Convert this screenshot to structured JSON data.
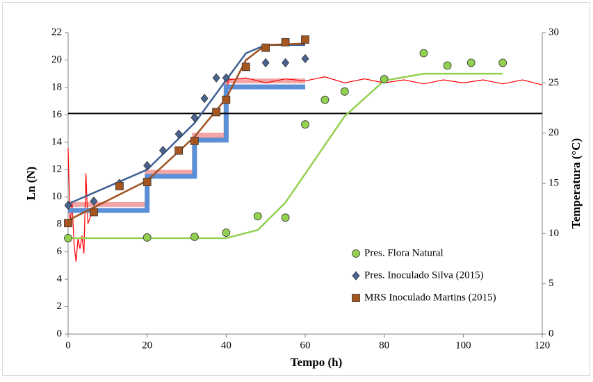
{
  "chart_data": {
    "type": "scatter",
    "xlabel": "Tempo (h)",
    "ylabel": "Ln (N)",
    "y2label": "Temperatura (°C)",
    "xlim": [
      0,
      120
    ],
    "xticks": [
      0,
      20,
      40,
      60,
      80,
      100,
      120
    ],
    "ylim": [
      0,
      22
    ],
    "yticks": [
      0,
      2,
      4,
      6,
      8,
      10,
      12,
      14,
      16,
      18,
      20,
      22
    ],
    "y2lim": [
      0,
      30
    ],
    "y2ticks": [
      0,
      5,
      10,
      15,
      20,
      25,
      30
    ],
    "reference_line": 16.1,
    "series": [
      {
        "name": "Pres. Flora Natural",
        "color": "#92d050",
        "marker": "circle",
        "x": [
          0,
          20,
          32,
          40,
          48,
          55,
          60,
          65,
          70,
          80,
          90,
          96,
          102,
          110
        ],
        "values": [
          7.0,
          7.05,
          7.1,
          7.4,
          8.6,
          8.5,
          15.3,
          17.1,
          17.7,
          18.6,
          20.5,
          19.6,
          19.8,
          19.8
        ]
      },
      {
        "name": "Pres. Inoculado Silva (2015)",
        "color": "#4a6491",
        "marker": "diamond",
        "x": [
          0,
          6.5,
          13,
          20,
          24,
          28,
          32,
          34.5,
          37.5,
          40,
          50,
          55,
          60
        ],
        "values": [
          9.4,
          9.7,
          11.0,
          12.3,
          13.4,
          14.6,
          15.8,
          17.2,
          18.7,
          18.7,
          19.8,
          19.8,
          20.1
        ]
      },
      {
        "name": "MRS Inoculado Martins (2015)",
        "color": "#a5561f",
        "marker": "square",
        "x": [
          0,
          6.5,
          13,
          20,
          28,
          32,
          37.5,
          40,
          45,
          50,
          55,
          60
        ],
        "values": [
          8.1,
          8.9,
          10.8,
          11.1,
          13.4,
          14.1,
          16.2,
          17.1,
          19.5,
          20.9,
          21.3,
          21.5
        ]
      }
    ],
    "fits": [
      {
        "color": "#92d050",
        "x": [
          0,
          40,
          48,
          55,
          70,
          80,
          90,
          110
        ],
        "values": [
          7.0,
          7.0,
          7.6,
          9.6,
          15.9,
          18.5,
          19.0,
          19.0
        ]
      },
      {
        "color": "#3e5f94",
        "x": [
          0,
          20,
          32,
          45,
          50,
          60
        ],
        "values": [
          9.5,
          12.0,
          15.4,
          20.5,
          21.1,
          21.1
        ]
      },
      {
        "color": "#a0511e",
        "x": [
          0,
          20,
          32,
          40,
          45,
          50,
          60
        ],
        "values": [
          8.3,
          11.2,
          14.4,
          17.2,
          20.0,
          21.1,
          21.2
        ]
      }
    ],
    "temperature": [
      {
        "color": "#f4a5a5",
        "axis": "y2",
        "x": [
          0,
          20,
          20,
          32,
          32,
          40,
          40,
          60
        ],
        "values": [
          12.9,
          12.9,
          16.1,
          16.1,
          19.8,
          19.8,
          25.2,
          25.2
        ]
      },
      {
        "color": "#ff0000",
        "axis": "y2",
        "x": [
          0,
          0.5,
          1,
          1.5,
          2,
          2.5,
          3,
          3.5,
          4,
          4.5,
          5,
          6,
          10,
          20,
          20.5,
          32,
          32.5,
          40,
          40.5,
          45,
          50,
          55,
          60,
          65,
          70,
          75,
          80,
          85,
          90,
          95,
          100,
          105,
          110,
          115,
          120
        ],
        "values": [
          18.5,
          11,
          13,
          9,
          7.2,
          9.5,
          8.5,
          9.8,
          8.0,
          16,
          11,
          12,
          12.5,
          12.3,
          15.8,
          15.8,
          19.5,
          19.5,
          25.3,
          25.5,
          25.0,
          25.4,
          25.2,
          25.6,
          25.0,
          25.4,
          25.0,
          25.3,
          24.9,
          25.3,
          25.0,
          25.3,
          24.9,
          25.3,
          24.8
        ]
      },
      {
        "color": "#5b8fd6",
        "axis": "y2",
        "x": [
          0,
          20,
          20,
          32,
          32,
          40,
          40,
          60
        ],
        "values": [
          12.3,
          12.3,
          15.7,
          15.7,
          19.3,
          19.3,
          24.6,
          24.6
        ]
      }
    ],
    "legend": "lower right"
  }
}
